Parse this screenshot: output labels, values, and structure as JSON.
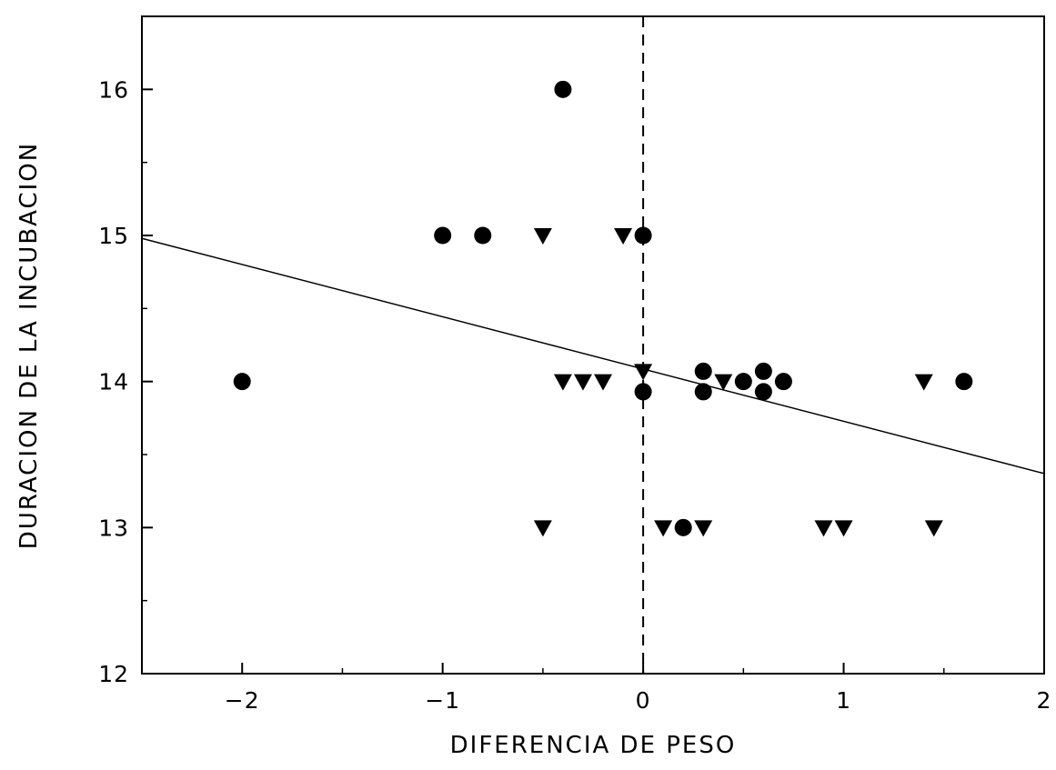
{
  "chart_data": {
    "type": "scatter",
    "title": "",
    "xlabel": "DIFERENCIA DE PESO",
    "ylabel": "DURACION DE LA INCUBACION",
    "xlim": [
      -2.5,
      2
    ],
    "ylim": [
      12,
      16.5
    ],
    "xticks": [
      -2,
      -1,
      0,
      1,
      2
    ],
    "xtick_labels": [
      "−2",
      "−1",
      "0",
      "1",
      "2"
    ],
    "yticks": [
      12,
      13,
      14,
      15,
      16
    ],
    "ytick_labels": [
      "12",
      "13",
      "14",
      "15",
      "16"
    ],
    "grid": false,
    "legend": "none",
    "reference_line": {
      "x": 0,
      "style": "dashed"
    },
    "regression_line": {
      "x": [
        -2.5,
        2
      ],
      "y": [
        14.98,
        13.37
      ]
    },
    "series": [
      {
        "marker": "circle",
        "x": [
          -0.4,
          -1.0,
          -0.8,
          0.0,
          -2.0,
          0.0,
          0.3,
          0.3,
          0.5,
          0.6,
          0.6,
          0.7,
          1.6,
          0.2
        ],
        "y": [
          16.0,
          15.0,
          15.0,
          15.0,
          14.0,
          13.93,
          14.07,
          13.93,
          14.0,
          14.07,
          13.93,
          14.0,
          14.0,
          13.0
        ]
      },
      {
        "marker": "triangle-down",
        "x": [
          -0.5,
          -0.1,
          -0.4,
          -0.3,
          -0.2,
          0.0,
          0.4,
          1.4,
          -0.5,
          0.1,
          0.3,
          0.9,
          1.0,
          1.45
        ],
        "y": [
          15.0,
          15.0,
          14.0,
          14.0,
          14.0,
          14.07,
          14.0,
          14.0,
          13.0,
          13.0,
          13.0,
          13.0,
          13.0,
          13.0
        ]
      }
    ]
  }
}
